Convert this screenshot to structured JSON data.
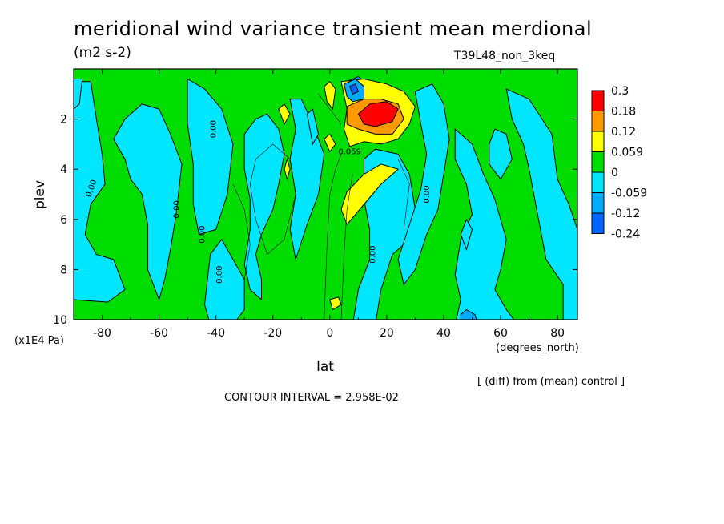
{
  "chart_data": {
    "type": "heatmap",
    "title": "meridional wind variance transient mean merdional",
    "units": "(m2 s-2)",
    "run_label": "T39L48_non_3keq",
    "xlabel": "lat",
    "xunits": "(degrees_north)",
    "ylabel": "plev",
    "yunits": "(x1E4 Pa)",
    "xlim": [
      -90,
      87
    ],
    "ylim": [
      10,
      0
    ],
    "x_ticks": [
      -80,
      -60,
      -40,
      -20,
      0,
      20,
      40,
      60,
      80
    ],
    "x_tick_labels": [
      "-80",
      "-60",
      "-40",
      "-20",
      "0",
      "20",
      "40",
      "60",
      "80"
    ],
    "y_ticks": [
      2,
      4,
      6,
      8,
      10
    ],
    "y_tick_labels": [
      "2",
      "4",
      "6",
      "8",
      "10"
    ],
    "colorbar": {
      "labels": [
        "0.3",
        "0.18",
        "0.12",
        "0.059",
        "0",
        "-0.059",
        "-0.12",
        "-0.24"
      ],
      "colors": [
        "#ff0000",
        "#ff9900",
        "#ffff00",
        "#00dd00",
        "#00e6ff",
        "#00aaff",
        "#0066ff"
      ]
    },
    "contour_labels": [
      "0.00",
      "0.00",
      "0.00",
      "0.00",
      "0.00",
      "0.00",
      "0.00",
      "0.059"
    ],
    "colors": {
      "positive_small": "#00dd00",
      "negative_small": "#00e6ff",
      "positive_mid": "#ffff00",
      "positive_high": "#ff9900",
      "positive_max": "#ff0000",
      "negative_mid": "#00aaff",
      "negative_max": "#0066ff"
    },
    "footer_note": "[ (diff) from (mean) control ]",
    "contour_interval": "CONTOUR INTERVAL = 2.958E-02"
  }
}
